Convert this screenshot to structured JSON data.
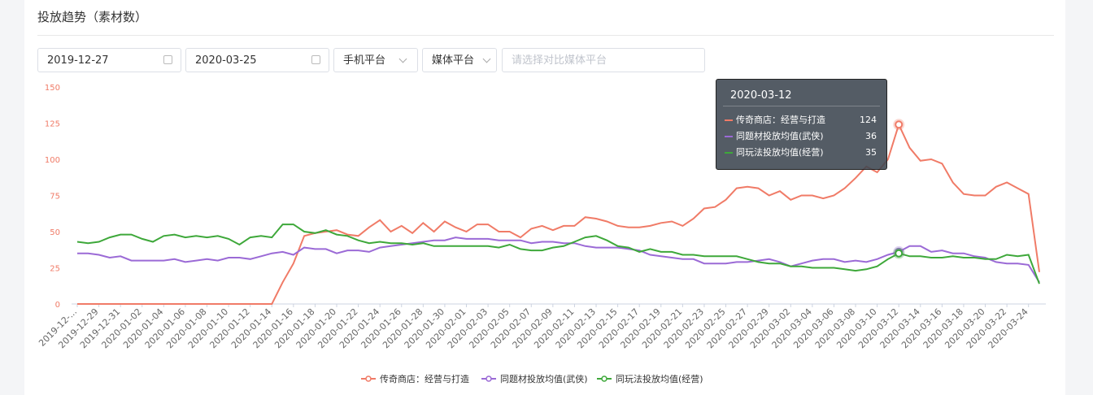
{
  "header": {
    "title": "投放趋势（素材数）"
  },
  "filters": {
    "start_date": "2019-12-27",
    "end_date": "2020-03-25",
    "platform": "手机平台",
    "media_platform": "媒体平台",
    "compare_placeholder": "请选择对比媒体平台"
  },
  "chart_data": {
    "type": "line",
    "categories": [
      "2019-12-...",
      null,
      "2019-12-29",
      null,
      "2019-12-31",
      null,
      "2020-01-02",
      null,
      "2020-01-04",
      null,
      "2020-01-06",
      null,
      "2020-01-08",
      null,
      "2020-01-10",
      null,
      "2020-01-12",
      null,
      "2020-01-14",
      null,
      "2020-01-16",
      null,
      "2020-01-18",
      null,
      "2020-01-20",
      null,
      "2020-01-22",
      null,
      "2020-01-24",
      null,
      "2020-01-26",
      null,
      "2020-01-28",
      null,
      "2020-01-30",
      null,
      "2020-02-01",
      null,
      "2020-02-03",
      null,
      "2020-02-05",
      null,
      "2020-02-07",
      null,
      "2020-02-09",
      null,
      "2020-02-11",
      null,
      "2020-02-13",
      null,
      "2020-02-15",
      null,
      "2020-02-17",
      null,
      "2020-02-19",
      null,
      "2020-02-21",
      null,
      "2020-02-23",
      null,
      "2020-02-25",
      null,
      "2020-02-27",
      null,
      "2020-02-29",
      null,
      "2020-03-02",
      null,
      "2020-03-04",
      null,
      "2020-03-06",
      null,
      "2020-03-08",
      null,
      "2020-03-10",
      null,
      "2020-03-12",
      null,
      "2020-03-14",
      null,
      "2020-03-16",
      null,
      "2020-03-18",
      null,
      "2020-03-20",
      null,
      "2020-03-22",
      null,
      "2020-03-24",
      null
    ],
    "series": [
      {
        "name": "传奇商店：经营与打造",
        "color": "#f07b67",
        "values": [
          0,
          0,
          0,
          0,
          0,
          0,
          0,
          0,
          0,
          0,
          0,
          0,
          0,
          0,
          0,
          0,
          0,
          0,
          0,
          15,
          28,
          47,
          49,
          50,
          51,
          48,
          47,
          53,
          58,
          50,
          54,
          49,
          56,
          50,
          57,
          53,
          50,
          55,
          55,
          50,
          50,
          46,
          52,
          54,
          51,
          54,
          54,
          60,
          59,
          57,
          54,
          53,
          53,
          54,
          56,
          57,
          54,
          59,
          66,
          67,
          72,
          80,
          81,
          80,
          75,
          78,
          72,
          75,
          75,
          73,
          75,
          80,
          87,
          95,
          91,
          100,
          124,
          108,
          99,
          100,
          97,
          84,
          76,
          75,
          75,
          81,
          84,
          80,
          76,
          22
        ]
      },
      {
        "name": "同题材投放均值(武侠)",
        "color": "#9b6ad6",
        "values": [
          35,
          35,
          34,
          32,
          33,
          30,
          30,
          30,
          30,
          31,
          29,
          30,
          31,
          30,
          32,
          32,
          31,
          33,
          35,
          36,
          34,
          39,
          38,
          38,
          35,
          37,
          37,
          36,
          39,
          40,
          41,
          42,
          43,
          44,
          44,
          46,
          45,
          45,
          45,
          44,
          44,
          44,
          42,
          43,
          43,
          42,
          42,
          40,
          39,
          39,
          39,
          38,
          37,
          34,
          33,
          32,
          31,
          31,
          28,
          28,
          28,
          29,
          29,
          30,
          31,
          29,
          26,
          28,
          30,
          31,
          31,
          29,
          30,
          29,
          31,
          34,
          36,
          40,
          40,
          36,
          37,
          35,
          35,
          33,
          32,
          29,
          28,
          28,
          27,
          15
        ]
      },
      {
        "name": "同玩法投放均值(经营)",
        "color": "#3ea83a",
        "values": [
          43,
          42,
          43,
          46,
          48,
          48,
          45,
          43,
          47,
          48,
          46,
          47,
          46,
          47,
          45,
          41,
          46,
          47,
          46,
          55,
          55,
          50,
          49,
          51,
          48,
          47,
          44,
          42,
          43,
          42,
          42,
          41,
          42,
          40,
          40,
          40,
          40,
          40,
          40,
          39,
          41,
          38,
          37,
          37,
          39,
          40,
          43,
          46,
          47,
          44,
          40,
          39,
          36,
          38,
          36,
          36,
          34,
          34,
          33,
          33,
          33,
          33,
          31,
          29,
          28,
          28,
          26,
          26,
          25,
          25,
          25,
          24,
          23,
          24,
          26,
          31,
          35,
          33,
          33,
          32,
          32,
          33,
          32,
          32,
          31,
          31,
          34,
          33,
          34,
          14
        ]
      }
    ],
    "ylim": [
      0,
      150
    ],
    "yticks": [
      0,
      25,
      50,
      75,
      100,
      125,
      150
    ],
    "grid": false,
    "legend": "bottom"
  }
}
